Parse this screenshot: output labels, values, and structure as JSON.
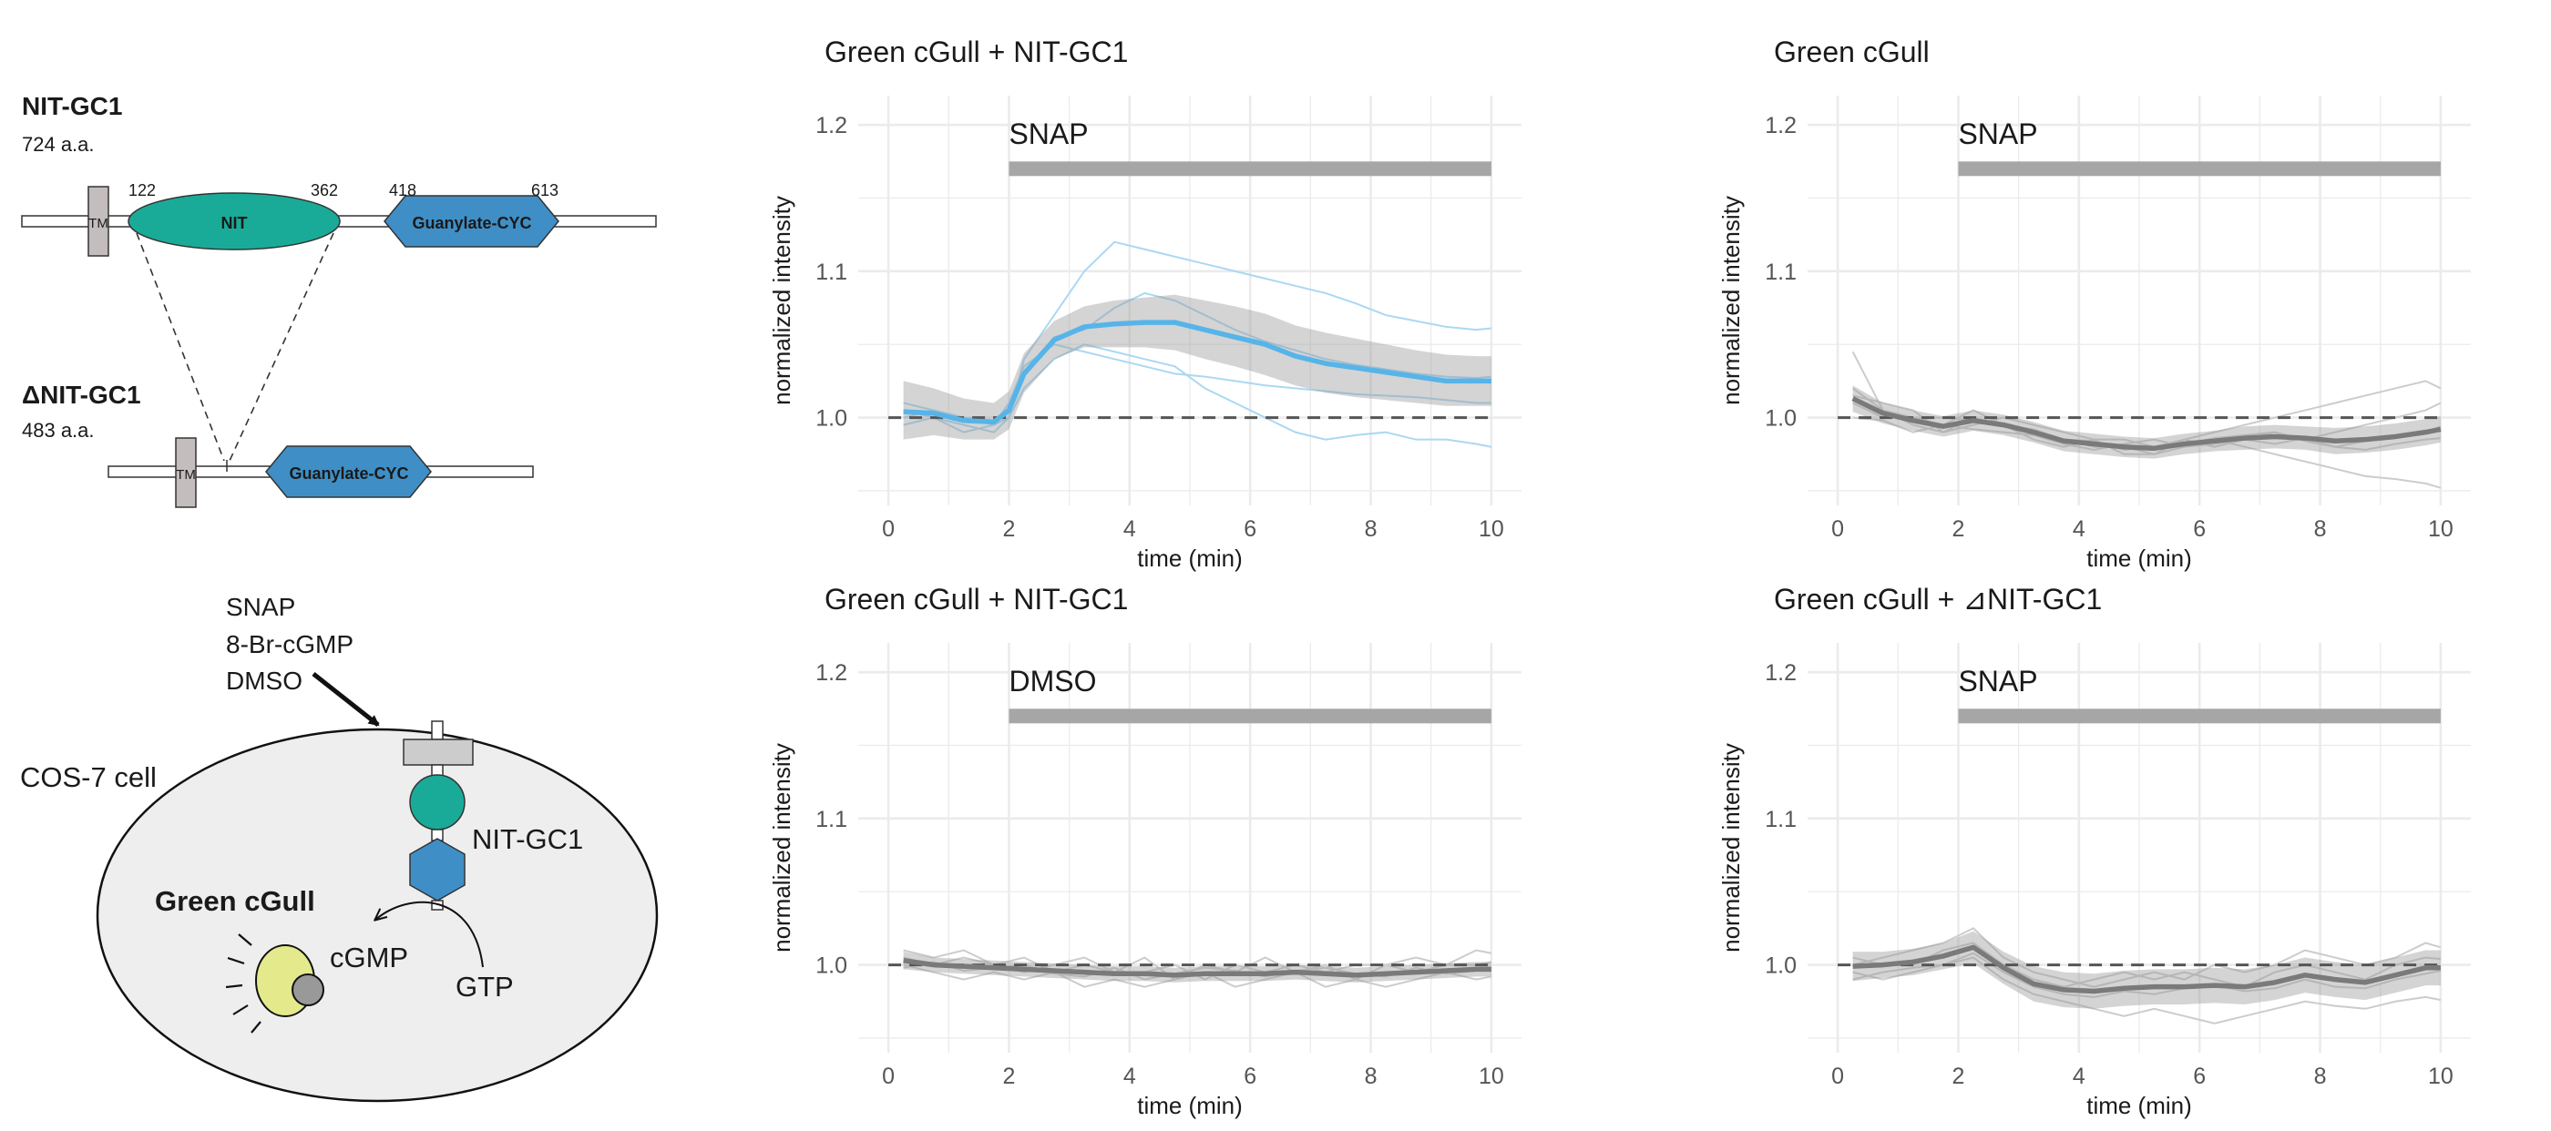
{
  "diagram": {
    "full_protein": {
      "name": "NIT-GC1",
      "length": "724 a.a.",
      "tm": "TM",
      "nit_domain": "NIT",
      "cyc_domain": "Guanylate-CYC",
      "nit_start": "122",
      "nit_end": "362",
      "cyc_start": "418",
      "cyc_end": "613"
    },
    "truncated_protein": {
      "name": "ΔNIT-GC1",
      "length": "483 a.a.",
      "tm": "TM",
      "cyc_domain": "Guanylate-CYC"
    },
    "cell": {
      "treatments": [
        "SNAP",
        "8-Br-cGMP",
        "DMSO"
      ],
      "cell_label": "COS-7 cell",
      "receptor_label": "NIT-GC1",
      "sensor_label": "Green cGull",
      "product_label": "cGMP",
      "substrate_label": "GTP"
    },
    "colors": {
      "nit": "#1aab98",
      "cyc": "#3f8fc6",
      "tm": "#c4bdbd",
      "cell": "#eeeeee",
      "sensor": "#e4e98c"
    }
  },
  "chart_data": [
    {
      "type": "line",
      "title": "Green cGull + NIT-GC1",
      "treatment": "SNAP",
      "treatment_window": [
        2,
        10
      ],
      "xlabel": "time (min)",
      "ylabel": "normalized intensity",
      "xlim": [
        0,
        10
      ],
      "ylim": [
        0.94,
        1.22
      ],
      "xticks": [
        0,
        2,
        4,
        6,
        8,
        10
      ],
      "yticks": [
        1.0,
        1.1,
        1.2
      ],
      "grid": true,
      "baseline": 1.0,
      "mean_color": "#56b4e9",
      "trace_color": "#aad8f3",
      "x": [
        0.25,
        0.75,
        1.25,
        1.75,
        2.0,
        2.25,
        2.75,
        3.25,
        3.75,
        4.25,
        4.75,
        5.25,
        5.75,
        6.25,
        6.75,
        7.25,
        7.75,
        8.25,
        8.75,
        9.25,
        9.75,
        10.0
      ],
      "mean": [
        1.004,
        1.003,
        0.998,
        0.997,
        1.005,
        1.03,
        1.053,
        1.062,
        1.064,
        1.065,
        1.065,
        1.06,
        1.055,
        1.05,
        1.042,
        1.037,
        1.034,
        1.031,
        1.028,
        1.025,
        1.025,
        1.025
      ],
      "ci_low": [
        0.985,
        0.988,
        0.985,
        0.985,
        0.992,
        1.017,
        1.04,
        1.048,
        1.048,
        1.048,
        1.046,
        1.04,
        1.035,
        1.029,
        1.022,
        1.017,
        1.014,
        1.012,
        1.01,
        1.008,
        1.008,
        1.008
      ],
      "ci_high": [
        1.025,
        1.02,
        1.013,
        1.01,
        1.018,
        1.044,
        1.066,
        1.076,
        1.08,
        1.082,
        1.084,
        1.08,
        1.076,
        1.071,
        1.063,
        1.058,
        1.054,
        1.05,
        1.046,
        1.043,
        1.042,
        1.042
      ],
      "traces": [
        [
          1.005,
          1.0,
          0.99,
          0.995,
          1.0,
          1.04,
          1.07,
          1.1,
          1.12,
          1.115,
          1.11,
          1.105,
          1.1,
          1.095,
          1.09,
          1.085,
          1.078,
          1.07,
          1.066,
          1.062,
          1.06,
          1.061
        ],
        [
          1.01,
          1.005,
          1.0,
          0.998,
          1.005,
          1.03,
          1.055,
          1.06,
          1.075,
          1.085,
          1.08,
          1.07,
          1.06,
          1.052,
          1.046,
          1.04,
          1.036,
          1.033,
          1.03,
          1.028,
          1.027,
          1.028
        ],
        [
          0.995,
          1.0,
          0.995,
          0.99,
          1.0,
          1.02,
          1.04,
          1.05,
          1.045,
          1.04,
          1.035,
          1.02,
          1.01,
          1.0,
          0.99,
          0.985,
          0.988,
          0.99,
          0.985,
          0.985,
          0.982,
          0.98
        ],
        [
          1.0,
          1.005,
          1.0,
          0.995,
          1.01,
          1.035,
          1.05,
          1.045,
          1.04,
          1.035,
          1.03,
          1.028,
          1.025,
          1.022,
          1.02,
          1.018,
          1.016,
          1.015,
          1.014,
          1.012,
          1.01,
          1.01
        ]
      ]
    },
    {
      "type": "line",
      "title": "Green cGull",
      "treatment": "SNAP",
      "treatment_window": [
        2,
        10
      ],
      "xlabel": "time (min)",
      "ylabel": "normalized intensity",
      "xlim": [
        0,
        10
      ],
      "ylim": [
        0.94,
        1.22
      ],
      "xticks": [
        0,
        2,
        4,
        6,
        8,
        10
      ],
      "yticks": [
        1.0,
        1.1,
        1.2
      ],
      "grid": true,
      "baseline": 1.0,
      "mean_color": "#7a7a7a",
      "trace_color": "#cccccc",
      "x": [
        0.25,
        0.75,
        1.25,
        1.75,
        2.25,
        2.75,
        3.25,
        3.75,
        4.25,
        4.75,
        5.25,
        5.75,
        6.25,
        6.75,
        7.25,
        7.75,
        8.25,
        8.75,
        9.25,
        9.75,
        10.0
      ],
      "mean": [
        1.013,
        1.003,
        0.998,
        0.994,
        0.998,
        0.995,
        0.99,
        0.984,
        0.982,
        0.98,
        0.979,
        0.982,
        0.984,
        0.986,
        0.987,
        0.986,
        0.984,
        0.985,
        0.987,
        0.99,
        0.992
      ],
      "ci_low": [
        1.004,
        0.996,
        0.991,
        0.987,
        0.991,
        0.988,
        0.983,
        0.977,
        0.975,
        0.973,
        0.972,
        0.975,
        0.977,
        0.978,
        0.979,
        0.978,
        0.975,
        0.976,
        0.978,
        0.981,
        0.983
      ],
      "ci_high": [
        1.022,
        1.01,
        1.005,
        1.001,
        1.005,
        1.002,
        0.997,
        0.991,
        0.989,
        0.987,
        0.986,
        0.989,
        0.991,
        0.994,
        0.995,
        0.994,
        0.993,
        0.994,
        0.996,
        0.999,
        1.001
      ],
      "traces": [
        [
          1.045,
          1.005,
          0.995,
          0.99,
          1.0,
          0.995,
          0.985,
          0.98,
          0.985,
          0.975,
          0.975,
          0.985,
          0.99,
          0.995,
          1.0,
          1.005,
          1.01,
          1.015,
          1.02,
          1.025,
          1.02
        ],
        [
          1.01,
          1.0,
          1.0,
          0.995,
          1.005,
          0.995,
          0.99,
          0.985,
          0.98,
          0.98,
          0.975,
          0.98,
          0.985,
          0.98,
          0.975,
          0.97,
          0.965,
          0.96,
          0.958,
          0.955,
          0.952
        ],
        [
          1.015,
          1.01,
          1.005,
          0.99,
          0.995,
          1.0,
          0.995,
          0.99,
          0.985,
          0.985,
          0.98,
          0.985,
          0.98,
          0.985,
          0.99,
          0.985,
          0.99,
          0.995,
          1.0,
          1.005,
          1.01
        ],
        [
          1.0,
          0.998,
          0.99,
          0.995,
          0.992,
          0.99,
          0.988,
          0.982,
          0.978,
          0.982,
          0.985,
          0.98,
          0.982,
          0.985,
          0.982,
          0.986,
          0.98,
          0.978,
          0.982,
          0.985,
          0.986
        ],
        [
          1.02,
          1.005,
          1.0,
          1.0,
          0.998,
          0.995,
          0.992,
          0.985,
          0.984,
          0.978,
          0.98,
          0.982,
          0.986,
          0.988,
          0.99,
          0.984,
          0.98,
          0.984,
          0.988,
          0.99,
          0.994
        ]
      ]
    },
    {
      "type": "line",
      "title": "Green cGull + NIT-GC1",
      "treatment": "DMSO",
      "treatment_window": [
        2,
        10
      ],
      "xlabel": "time (min)",
      "ylabel": "normalized intensity",
      "xlim": [
        0,
        10
      ],
      "ylim": [
        0.94,
        1.22
      ],
      "xticks": [
        0,
        2,
        4,
        6,
        8,
        10
      ],
      "yticks": [
        1.0,
        1.1,
        1.2
      ],
      "grid": true,
      "baseline": 1.0,
      "mean_color": "#7a7a7a",
      "trace_color": "#cccccc",
      "x": [
        0.25,
        0.75,
        1.25,
        1.75,
        2.25,
        2.75,
        3.25,
        3.75,
        4.25,
        4.75,
        5.25,
        5.75,
        6.25,
        6.75,
        7.25,
        7.75,
        8.25,
        8.75,
        9.25,
        9.75,
        10.0
      ],
      "mean": [
        1.003,
        1.0,
        0.999,
        0.998,
        0.997,
        0.996,
        0.995,
        0.994,
        0.994,
        0.993,
        0.994,
        0.994,
        0.994,
        0.995,
        0.994,
        0.993,
        0.994,
        0.995,
        0.996,
        0.997,
        0.997
      ],
      "ci_low": [
        0.997,
        0.995,
        0.994,
        0.993,
        0.992,
        0.991,
        0.99,
        0.989,
        0.989,
        0.988,
        0.989,
        0.989,
        0.989,
        0.99,
        0.989,
        0.988,
        0.989,
        0.99,
        0.991,
        0.992,
        0.992
      ],
      "ci_high": [
        1.009,
        1.005,
        1.004,
        1.003,
        1.002,
        1.001,
        1.0,
        0.999,
        0.999,
        0.998,
        0.999,
        0.999,
        0.999,
        1.0,
        0.999,
        0.998,
        0.999,
        1.0,
        1.001,
        1.002,
        1.002
      ],
      "traces": [
        [
          1.01,
          1.005,
          1.01,
          1.0,
          1.005,
          0.995,
          1.0,
          0.995,
          1.005,
          0.99,
          1.0,
          0.995,
          1.005,
          0.995,
          1.0,
          0.99,
          1.0,
          1.005,
          1.0,
          1.01,
          1.008
        ],
        [
          1.0,
          0.995,
          0.99,
          0.995,
          0.99,
          0.995,
          0.985,
          0.99,
          0.985,
          0.99,
          0.995,
          0.985,
          0.99,
          0.995,
          0.985,
          0.99,
          0.985,
          0.99,
          0.995,
          0.99,
          0.992
        ],
        [
          1.005,
          1.0,
          1.005,
          1.0,
          0.995,
          1.0,
          1.005,
          0.995,
          0.995,
          1.0,
          0.99,
          1.0,
          0.995,
          1.0,
          0.995,
          1.0,
          1.0,
          0.995,
          1.0,
          1.0,
          1.002
        ],
        [
          0.998,
          1.002,
          0.996,
          0.998,
          1.0,
          0.994,
          0.992,
          0.998,
          0.99,
          0.994,
          0.998,
          0.996,
          0.992,
          0.996,
          0.998,
          0.994,
          0.992,
          0.998,
          0.994,
          0.996,
          0.996
        ]
      ]
    },
    {
      "type": "line",
      "title": "Green cGull + ⊿NIT-GC1",
      "treatment": "SNAP",
      "treatment_window": [
        2,
        10
      ],
      "xlabel": "time (min)",
      "ylabel": "normalized intensity",
      "xlim": [
        0,
        10
      ],
      "ylim": [
        0.94,
        1.22
      ],
      "xticks": [
        0,
        2,
        4,
        6,
        8,
        10
      ],
      "yticks": [
        1.0,
        1.1,
        1.2
      ],
      "grid": true,
      "baseline": 1.0,
      "mean_color": "#7a7a7a",
      "trace_color": "#cccccc",
      "x": [
        0.25,
        0.75,
        1.25,
        1.75,
        2.25,
        2.75,
        3.25,
        3.75,
        4.25,
        4.75,
        5.25,
        5.75,
        6.25,
        6.75,
        7.25,
        7.75,
        8.25,
        8.75,
        9.25,
        9.75,
        10.0
      ],
      "mean": [
        0.999,
        1.0,
        1.002,
        1.006,
        1.012,
        0.998,
        0.987,
        0.983,
        0.982,
        0.984,
        0.985,
        0.985,
        0.986,
        0.985,
        0.988,
        0.993,
        0.99,
        0.988,
        0.993,
        0.998,
        0.998
      ],
      "ci_low": [
        0.989,
        0.991,
        0.993,
        0.997,
        1.001,
        0.987,
        0.975,
        0.971,
        0.97,
        0.972,
        0.973,
        0.973,
        0.974,
        0.973,
        0.976,
        0.981,
        0.978,
        0.976,
        0.981,
        0.986,
        0.986
      ],
      "ci_high": [
        1.009,
        1.009,
        1.011,
        1.015,
        1.023,
        1.009,
        0.999,
        0.995,
        0.994,
        0.996,
        0.997,
        0.997,
        0.998,
        0.997,
        1.0,
        1.005,
        1.002,
        1.0,
        1.005,
        1.01,
        1.01
      ],
      "traces": [
        [
          1.0,
          1.005,
          1.01,
          1.015,
          1.025,
          1.005,
          0.995,
          0.99,
          0.985,
          0.99,
          0.995,
          0.99,
          1.0,
          0.995,
          1.0,
          1.01,
          1.005,
          1.0,
          1.005,
          1.015,
          1.012
        ],
        [
          0.995,
          0.99,
          0.995,
          1.0,
          1.005,
          0.99,
          0.98,
          0.975,
          0.97,
          0.965,
          0.97,
          0.965,
          0.96,
          0.965,
          0.97,
          0.975,
          0.972,
          0.97,
          0.975,
          0.978,
          0.976
        ],
        [
          1.005,
          1.0,
          1.0,
          1.01,
          1.015,
          1.0,
          0.99,
          0.985,
          0.99,
          0.995,
          0.99,
          0.995,
          0.99,
          0.985,
          0.995,
          1.0,
          0.995,
          0.99,
          1.0,
          1.005,
          1.004
        ],
        [
          0.99,
          0.995,
          0.998,
          1.0,
          1.008,
          0.995,
          0.985,
          0.98,
          0.978,
          0.982,
          0.98,
          0.984,
          0.986,
          0.982,
          0.984,
          0.99,
          0.985,
          0.984,
          0.99,
          0.994,
          0.996
        ]
      ]
    }
  ]
}
